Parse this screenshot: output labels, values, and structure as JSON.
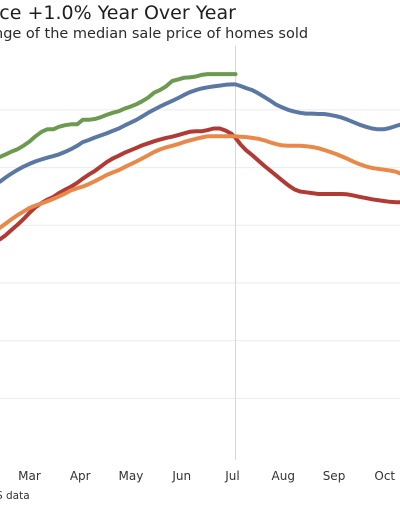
{
  "title": "ice +1.0% Year Over Year",
  "subtitle": "nge of the median sale price of homes sold",
  "source": "S data",
  "chart_data": {
    "type": "line",
    "title": "ice +1.0% Year Over Year",
    "subtitle": "nge of the median sale price of homes sold",
    "xlabel": "",
    "ylabel": "",
    "x_ticks": [
      "Mar",
      "Apr",
      "May",
      "Jun",
      "Jul",
      "Aug",
      "Sep",
      "Oct"
    ],
    "x_tick_positions": [
      2,
      3,
      4,
      5,
      6,
      7,
      8,
      9
    ],
    "xlim": [
      1.42,
      9.3
    ],
    "ylim": [
      0,
      100
    ],
    "grid": true,
    "grid_values": [
      14,
      28,
      42,
      56,
      70,
      84
    ],
    "vline_x": 6.06,
    "series": [
      {
        "color": "#6b9a50",
        "x": [
          1.42,
          1.53,
          1.65,
          1.77,
          1.89,
          2.0,
          2.12,
          2.24,
          2.35,
          2.47,
          2.58,
          2.7,
          2.82,
          2.94,
          3.05,
          3.17,
          3.29,
          3.4,
          3.52,
          3.64,
          3.76,
          3.87,
          3.99,
          4.11,
          4.22,
          4.34,
          4.46,
          4.57,
          4.69,
          4.81,
          4.93,
          5.04,
          5.16,
          5.28,
          5.39,
          5.51,
          5.63,
          5.75,
          5.86,
          5.98,
          6.06
        ],
        "values": [
          72.6,
          73.2,
          73.9,
          74.5,
          75.4,
          76.3,
          77.6,
          78.7,
          79.3,
          79.3,
          79.9,
          80.3,
          80.5,
          80.5,
          81.6,
          81.6,
          81.8,
          82.2,
          82.8,
          83.3,
          83.7,
          84.3,
          84.8,
          85.4,
          86.1,
          87.0,
          88.2,
          88.8,
          89.7,
          91.0,
          91.4,
          91.8,
          91.9,
          92.1,
          92.5,
          92.7,
          92.7,
          92.7,
          92.7,
          92.7,
          92.7
        ]
      },
      {
        "color": "#5a78a3",
        "x": [
          1.42,
          1.53,
          1.65,
          1.77,
          1.89,
          2.0,
          2.12,
          2.24,
          2.35,
          2.47,
          2.58,
          2.7,
          2.82,
          2.94,
          3.05,
          3.17,
          3.29,
          3.4,
          3.52,
          3.64,
          3.76,
          3.87,
          3.99,
          4.11,
          4.22,
          4.34,
          4.46,
          4.57,
          4.69,
          4.81,
          4.93,
          5.04,
          5.16,
          5.28,
          5.39,
          5.51,
          5.63,
          5.75,
          5.86,
          5.98,
          6.06,
          6.16,
          6.27,
          6.39,
          6.51,
          6.63,
          6.75,
          6.86,
          6.98,
          7.1,
          7.22,
          7.33,
          7.45,
          7.57,
          7.69,
          7.8,
          7.92,
          8.04,
          8.16,
          8.27,
          8.39,
          8.51,
          8.63,
          8.75,
          8.86,
          8.98,
          9.1,
          9.22,
          9.3
        ],
        "values": [
          66.6,
          67.6,
          68.6,
          69.5,
          70.3,
          70.9,
          71.5,
          72.0,
          72.4,
          72.8,
          73.2,
          73.8,
          74.5,
          75.3,
          76.2,
          76.7,
          77.3,
          77.8,
          78.3,
          78.9,
          79.5,
          80.2,
          80.9,
          81.6,
          82.4,
          83.3,
          84.1,
          84.8,
          85.5,
          86.2,
          86.9,
          87.6,
          88.3,
          88.8,
          89.2,
          89.5,
          89.7,
          89.9,
          90.1,
          90.2,
          90.2,
          89.8,
          89.3,
          88.8,
          88.0,
          87.1,
          86.2,
          85.3,
          84.6,
          84.0,
          83.6,
          83.3,
          83.1,
          83.1,
          83.0,
          83.0,
          82.8,
          82.5,
          82.1,
          81.6,
          81.0,
          80.4,
          79.9,
          79.5,
          79.3,
          79.3,
          79.6,
          80.1,
          80.4
        ]
      },
      {
        "color": "#b23a35",
        "x": [
          1.42,
          1.53,
          1.65,
          1.77,
          1.89,
          2.0,
          2.12,
          2.24,
          2.35,
          2.47,
          2.58,
          2.7,
          2.82,
          2.94,
          3.05,
          3.17,
          3.29,
          3.4,
          3.52,
          3.64,
          3.76,
          3.87,
          3.99,
          4.11,
          4.22,
          4.34,
          4.46,
          4.57,
          4.69,
          4.81,
          4.93,
          5.04,
          5.16,
          5.28,
          5.39,
          5.51,
          5.63,
          5.75,
          5.86,
          5.98,
          6.06,
          6.16,
          6.27,
          6.39,
          6.51,
          6.63,
          6.75,
          6.86,
          6.98,
          7.1,
          7.22,
          7.33,
          7.45,
          7.57,
          7.69,
          7.8,
          7.92,
          8.04,
          8.16,
          8.27,
          8.39,
          8.51,
          8.63,
          8.75,
          8.86,
          8.98,
          9.1,
          9.22,
          9.3
        ],
        "values": [
          52.6,
          53.6,
          54.9,
          56.2,
          57.6,
          59.0,
          60.4,
          61.4,
          62.2,
          62.9,
          63.8,
          64.6,
          65.4,
          66.3,
          67.3,
          68.3,
          69.2,
          70.2,
          71.3,
          72.2,
          72.9,
          73.6,
          74.2,
          74.8,
          75.4,
          75.9,
          76.4,
          76.8,
          77.2,
          77.5,
          77.9,
          78.3,
          78.7,
          78.8,
          78.8,
          79.1,
          79.5,
          79.5,
          79.0,
          78.2,
          77.2,
          75.6,
          74.2,
          73.0,
          71.7,
          70.4,
          69.2,
          68.1,
          66.9,
          65.7,
          64.7,
          64.2,
          64.0,
          63.8,
          63.6,
          63.6,
          63.6,
          63.6,
          63.6,
          63.5,
          63.2,
          62.9,
          62.6,
          62.3,
          62.1,
          61.9,
          61.7,
          61.6,
          61.6
        ]
      },
      {
        "color": "#e8894a",
        "x": [
          1.42,
          1.53,
          1.65,
          1.77,
          1.89,
          2.0,
          2.12,
          2.24,
          2.35,
          2.47,
          2.58,
          2.7,
          2.82,
          2.94,
          3.05,
          3.17,
          3.29,
          3.4,
          3.52,
          3.64,
          3.76,
          3.87,
          3.99,
          4.11,
          4.22,
          4.34,
          4.46,
          4.57,
          4.69,
          4.81,
          4.93,
          5.04,
          5.16,
          5.28,
          5.39,
          5.51,
          5.63,
          5.75,
          5.86,
          5.98,
          6.06,
          6.16,
          6.27,
          6.39,
          6.51,
          6.63,
          6.75,
          6.86,
          6.98,
          7.1,
          7.22,
          7.33,
          7.45,
          7.57,
          7.69,
          7.8,
          7.92,
          8.04,
          8.16,
          8.27,
          8.39,
          8.51,
          8.63,
          8.75,
          8.86,
          8.98,
          9.1,
          9.22,
          9.3
        ],
        "values": [
          55.4,
          56.4,
          57.5,
          58.5,
          59.4,
          60.2,
          60.8,
          61.3,
          61.8,
          62.4,
          63.0,
          63.7,
          64.5,
          65.0,
          65.4,
          66.0,
          66.7,
          67.4,
          68.2,
          68.8,
          69.4,
          70.1,
          70.8,
          71.5,
          72.2,
          73.0,
          73.8,
          74.4,
          74.9,
          75.3,
          75.7,
          76.2,
          76.6,
          77.0,
          77.3,
          77.6,
          77.6,
          77.6,
          77.6,
          77.6,
          77.6,
          77.5,
          77.4,
          77.2,
          77.0,
          76.6,
          76.1,
          75.7,
          75.4,
          75.3,
          75.3,
          75.3,
          75.2,
          75.0,
          74.7,
          74.3,
          73.8,
          73.3,
          72.7,
          72.1,
          71.4,
          70.8,
          70.3,
          69.9,
          69.7,
          69.5,
          69.3,
          69.0,
          68.6
        ]
      }
    ]
  }
}
